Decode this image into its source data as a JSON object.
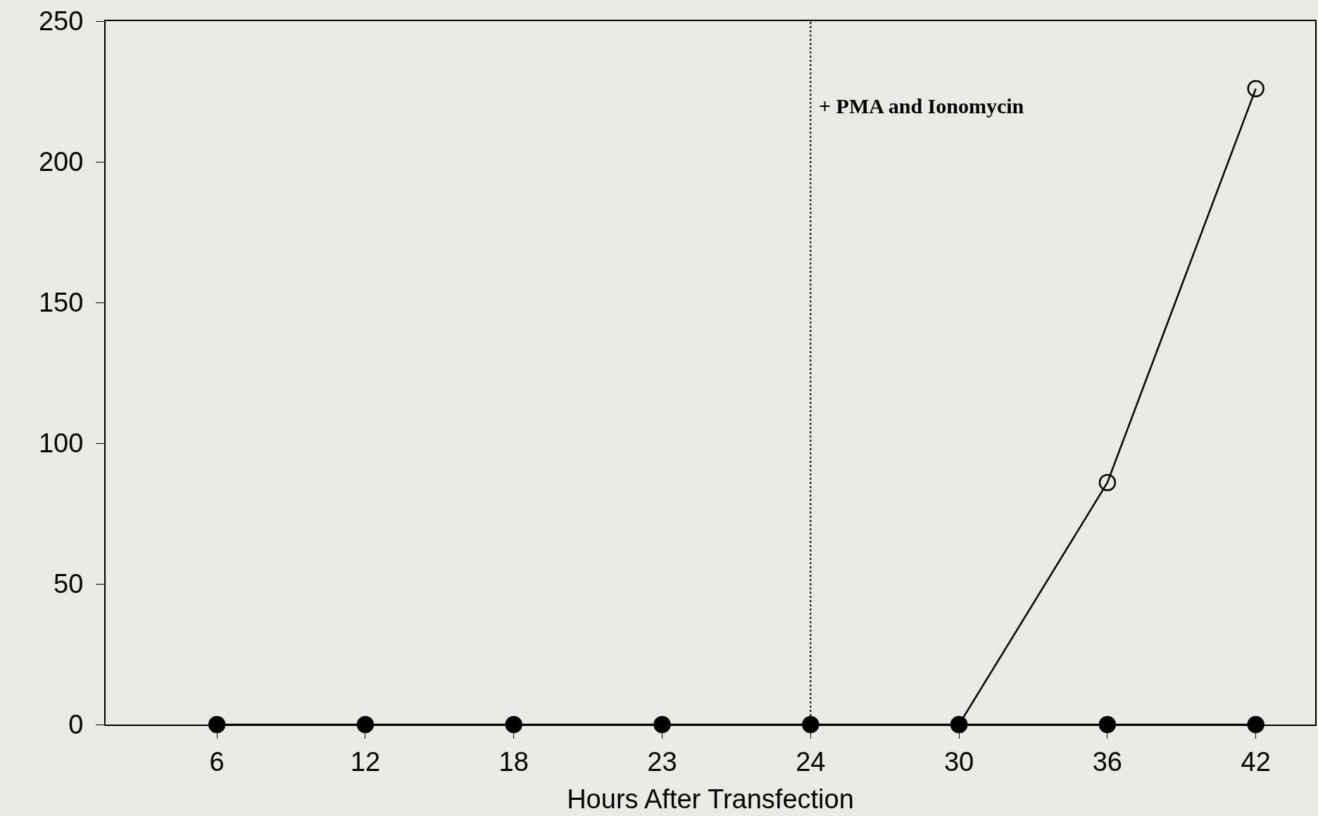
{
  "chart_data": {
    "type": "line",
    "xlabel": "Hours After Transfection",
    "categories": [
      "6",
      "12",
      "18",
      "23",
      "24",
      "30",
      "36",
      "42"
    ],
    "series": [
      {
        "color": "#000000",
        "marker": "circle-open",
        "values": [
          null,
          null,
          null,
          null,
          null,
          0,
          86,
          226
        ]
      },
      {
        "color": "#000000",
        "marker": "circle",
        "values": [
          0,
          0,
          0,
          0,
          0,
          0,
          0,
          0
        ]
      }
    ],
    "ylim": [
      0,
      250
    ],
    "yticks": [
      0,
      50,
      100,
      150,
      200,
      250
    ],
    "grid": false,
    "line_style": "solid",
    "ref_lines": [
      {
        "axis": "x",
        "value": "24",
        "label": "+ PMA and Ionomycin",
        "line_style": "dotted",
        "color": "#000000"
      }
    ]
  }
}
